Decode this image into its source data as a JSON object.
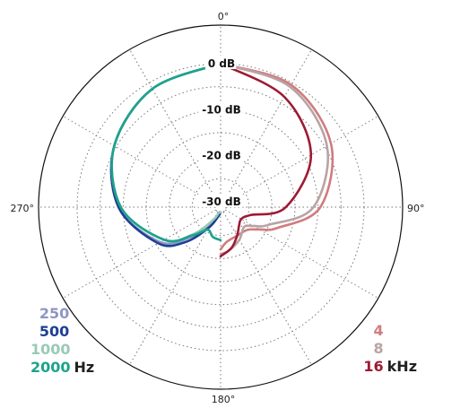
{
  "chart_data": {
    "type": "polar",
    "title": "",
    "angle_labels": [
      "0°",
      "90°",
      "180°",
      "270°"
    ],
    "radial_labels": [
      "0 dB",
      "-10 dB",
      "-20 dB",
      "-30 dB"
    ],
    "radial_range_db": [
      -30,
      0
    ],
    "grid": "on",
    "legend_left": {
      "unit": "Hz",
      "series": [
        {
          "name": "250",
          "color": "#8e96c4"
        },
        {
          "name": "500",
          "color": "#1f3f94"
        },
        {
          "name": "1000",
          "color": "#98cab5"
        },
        {
          "name": "2000",
          "color": "#1ca38b"
        }
      ]
    },
    "legend_right": {
      "unit": "kHz",
      "series": [
        {
          "name": "4",
          "color": "#d07c7f"
        },
        {
          "name": "8",
          "color": "#b9a3a4"
        },
        {
          "name": "16",
          "color": "#9e1a33"
        }
      ]
    },
    "series": [
      {
        "name": "250",
        "color": "#8e96c4",
        "side": "left",
        "angles": [
          0,
          30,
          60,
          90,
          120,
          135,
          150,
          165,
          180
        ],
        "values": [
          0,
          -1.5,
          -4.5,
          -9,
          -16,
          -22,
          -27,
          -29.5,
          -30
        ]
      },
      {
        "name": "500",
        "color": "#1f3f94",
        "side": "left",
        "angles": [
          0,
          30,
          60,
          90,
          120,
          135,
          150,
          165,
          180
        ],
        "values": [
          0,
          -1.5,
          -4.5,
          -9,
          -15.5,
          -20.5,
          -26,
          -29,
          -30
        ]
      },
      {
        "name": "1000",
        "color": "#98cab5",
        "side": "left",
        "angles": [
          0,
          30,
          60,
          90,
          120,
          135,
          150,
          165,
          180
        ],
        "values": [
          0,
          -1.5,
          -4.5,
          -9.5,
          -17,
          -23,
          -28,
          -30,
          -30
        ]
      },
      {
        "name": "2000",
        "color": "#1ca38b",
        "side": "left",
        "angles": [
          0,
          30,
          60,
          90,
          120,
          135,
          150,
          165,
          180
        ],
        "values": [
          0,
          -1.5,
          -4.5,
          -9.5,
          -17,
          -22.5,
          -25.5,
          -24.5,
          -24
        ]
      },
      {
        "name": "4",
        "color": "#d07c7f",
        "side": "right",
        "angles": [
          0,
          30,
          60,
          90,
          110,
          120,
          130,
          150,
          170,
          180
        ],
        "values": [
          0,
          -0.5,
          -3.5,
          -9.5,
          -18,
          -21.5,
          -23.5,
          -24,
          -23.5,
          -22
        ]
      },
      {
        "name": "8",
        "color": "#b9a3a4",
        "side": "right",
        "angles": [
          0,
          30,
          60,
          90,
          110,
          120,
          130,
          150,
          170,
          180
        ],
        "values": [
          0,
          -1,
          -4.5,
          -11,
          -20,
          -23,
          -24.5,
          -23,
          -21.5,
          -21
        ]
      },
      {
        "name": "16",
        "color": "#9e1a33",
        "side": "right",
        "angles": [
          0,
          30,
          60,
          90,
          105,
          120,
          135,
          150,
          165,
          180
        ],
        "values": [
          0,
          -3.5,
          -8.5,
          -17,
          -24.5,
          -26,
          -25.5,
          -24,
          -22,
          -20.5
        ]
      }
    ]
  }
}
